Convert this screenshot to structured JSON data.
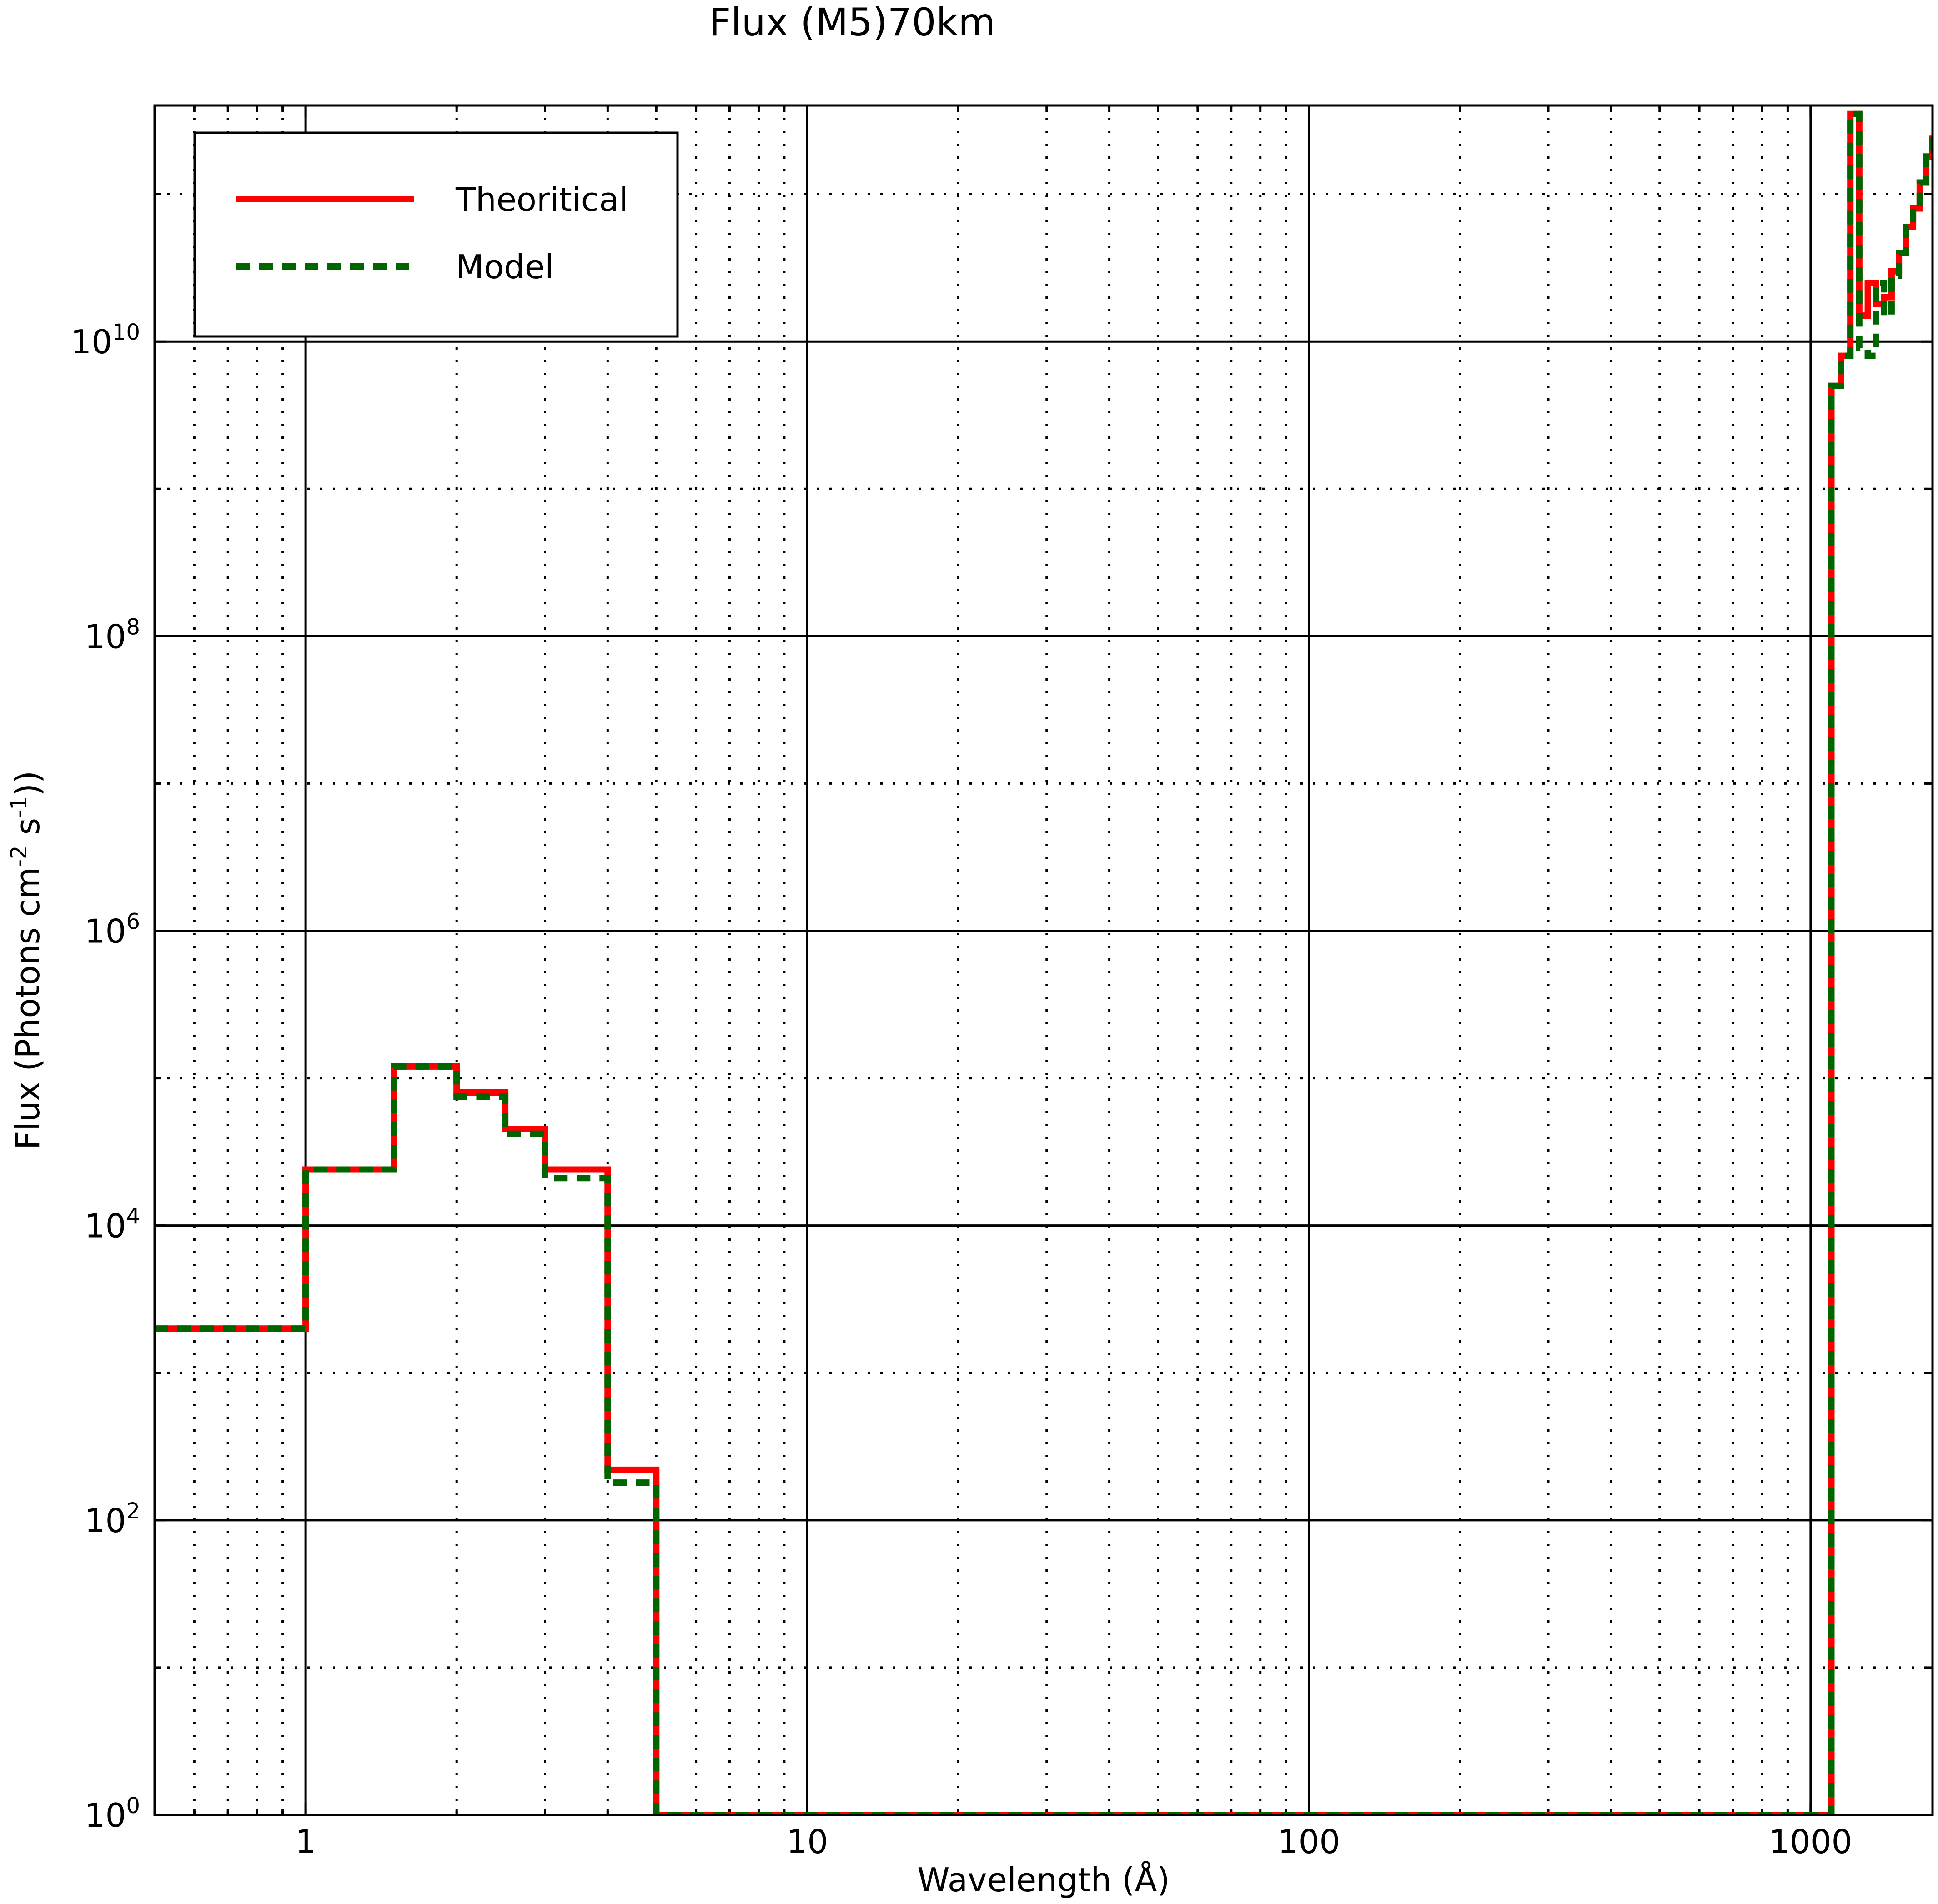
{
  "chart_data": {
    "type": "line",
    "step": true,
    "title": "Flux (M5)70km",
    "xlabel": "Wavelength (Å)",
    "ylabel": "Flux (Photons cm",
    "ylabel_parts": [
      "Flux (Photons cm",
      "-2",
      " s",
      "-1",
      "))"
    ],
    "xscale": "log",
    "yscale": "log",
    "xlim": [
      0.5,
      1750
    ],
    "ylim": [
      1,
      400000000000.0
    ],
    "grid": true,
    "legend_position": "upper left",
    "x_ticks": [
      {
        "value": 1,
        "label": "1"
      },
      {
        "value": 10,
        "label": "10"
      },
      {
        "value": 100,
        "label": "100"
      },
      {
        "value": 1000,
        "label": "1000"
      }
    ],
    "y_ticks": [
      {
        "value": 1,
        "base": "10",
        "exp": "0"
      },
      {
        "value": 100,
        "base": "10",
        "exp": "2"
      },
      {
        "value": 10000,
        "base": "10",
        "exp": "4"
      },
      {
        "value": 1000000,
        "base": "10",
        "exp": "6"
      },
      {
        "value": 100000000,
        "base": "10",
        "exp": "8"
      },
      {
        "value": 10000000000,
        "base": "10",
        "exp": "10"
      }
    ],
    "series": [
      {
        "name": "Theoritical",
        "color": "#ff0000",
        "style": "solid",
        "edges": [
          0.5,
          1,
          1.5,
          2,
          2.5,
          3,
          4,
          5,
          1100,
          1150,
          1200,
          1250,
          1300,
          1350,
          1400,
          1450,
          1500,
          1550,
          1600,
          1650,
          1700,
          1750
        ],
        "values": [
          2000,
          24000,
          120000,
          80000,
          45000,
          24000,
          220,
          0.1,
          5000000000,
          8000000000,
          350000000000,
          15000000000,
          25000000000,
          18000000000,
          20000000000,
          30000000000,
          40000000000,
          60000000000,
          80000000000,
          120000000000,
          180000000000,
          250000000000
        ]
      },
      {
        "name": "Model",
        "color": "#006400",
        "style": "dashed",
        "edges": [
          0.5,
          1,
          1.5,
          2,
          2.5,
          3,
          4,
          5,
          1100,
          1150,
          1200,
          1250,
          1300,
          1350,
          1400,
          1450,
          1500,
          1550,
          1600,
          1650,
          1700,
          1750
        ],
        "values": [
          2000,
          24000,
          120000,
          75000,
          42000,
          21000,
          180,
          0.1,
          5000000000,
          8000000000,
          350000000000,
          9000000000,
          8000000000,
          25000000000,
          15000000000,
          28000000000,
          40000000000,
          60000000000,
          80000000000,
          120000000000,
          180000000000,
          250000000000
        ]
      }
    ]
  }
}
